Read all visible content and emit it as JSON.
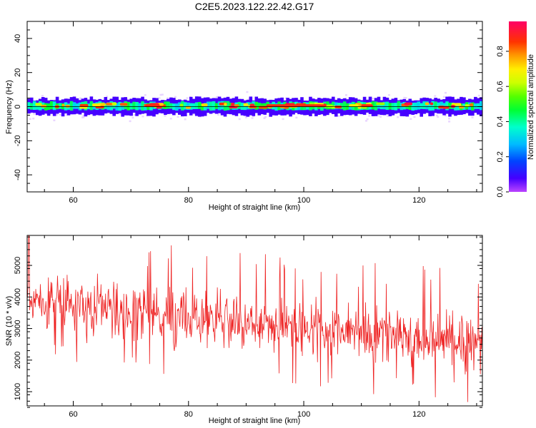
{
  "title": "C2E5.2023.122.22.42.G17",
  "chart_data": [
    {
      "type": "heatmap",
      "xlabel": "Height of straight line (km)",
      "ylabel": "Frequency (Hz)",
      "xlim": [
        52,
        131
      ],
      "ylim": [
        -50,
        50
      ],
      "xticks": [
        60,
        80,
        100,
        120
      ],
      "yticks": [
        -40,
        -20,
        0,
        20,
        40
      ],
      "ytick_labels": [
        "-40",
        "-20",
        "0",
        "20",
        "40"
      ],
      "signal_band_hz": [
        -3,
        4
      ],
      "colorbar": {
        "label": "Normalized spectral amplitude",
        "range": [
          0.0,
          0.97
        ],
        "ticks": [
          0.0,
          0.2,
          0.4,
          0.6,
          0.8
        ],
        "tick_labels": [
          "0.0",
          "0.2",
          "0.4",
          "0.6",
          "0.8"
        ],
        "colormap": "gist_rainbow"
      }
    },
    {
      "type": "line",
      "xlabel": "Height of straight line (km)",
      "ylabel": "SNR (10 * v/v)",
      "xlim": [
        52,
        131
      ],
      "ylim": [
        550,
        5950
      ],
      "xticks": [
        60,
        80,
        100,
        120
      ],
      "yticks": [
        1000,
        2000,
        3000,
        4000,
        5000
      ],
      "color": "#ee2222",
      "trend": [
        [
          52,
          3900
        ],
        [
          60,
          3750
        ],
        [
          70,
          3550
        ],
        [
          80,
          3350
        ],
        [
          90,
          3150
        ],
        [
          100,
          3000
        ],
        [
          110,
          2850
        ],
        [
          120,
          2700
        ],
        [
          131,
          2600
        ]
      ]
    }
  ]
}
